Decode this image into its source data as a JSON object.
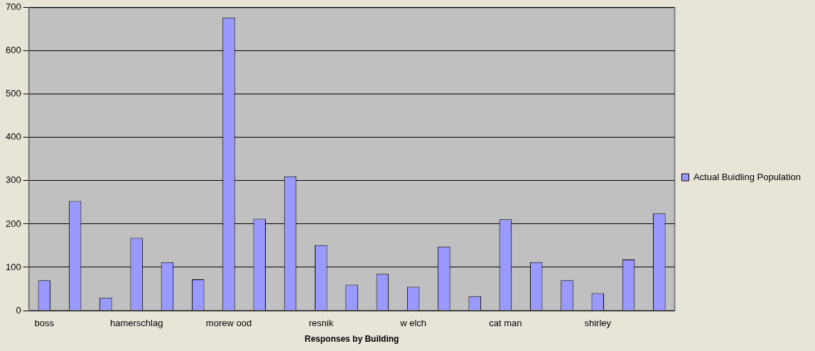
{
  "chart_data": {
    "type": "bar",
    "xlabel": "Responses by Building",
    "categories": [
      "boss",
      null,
      null,
      "hamerschlag",
      null,
      null,
      "morew ood",
      null,
      null,
      "resnik",
      null,
      null,
      "w elch",
      null,
      null,
      "cat man",
      null,
      null,
      "shirley",
      null,
      null
    ],
    "series": [
      {
        "name": "Actual Buidling Population",
        "color": "#9999ff",
        "values": [
          70,
          253,
          30,
          168,
          112,
          72,
          677,
          212,
          310,
          151,
          60,
          85,
          55,
          148,
          33,
          211,
          112,
          70,
          40,
          118,
          225
        ]
      }
    ],
    "ylim": [
      0,
      700
    ],
    "yticks": [
      0,
      100,
      200,
      300,
      400,
      500,
      600,
      700
    ],
    "grid": "y",
    "legend": "right"
  }
}
